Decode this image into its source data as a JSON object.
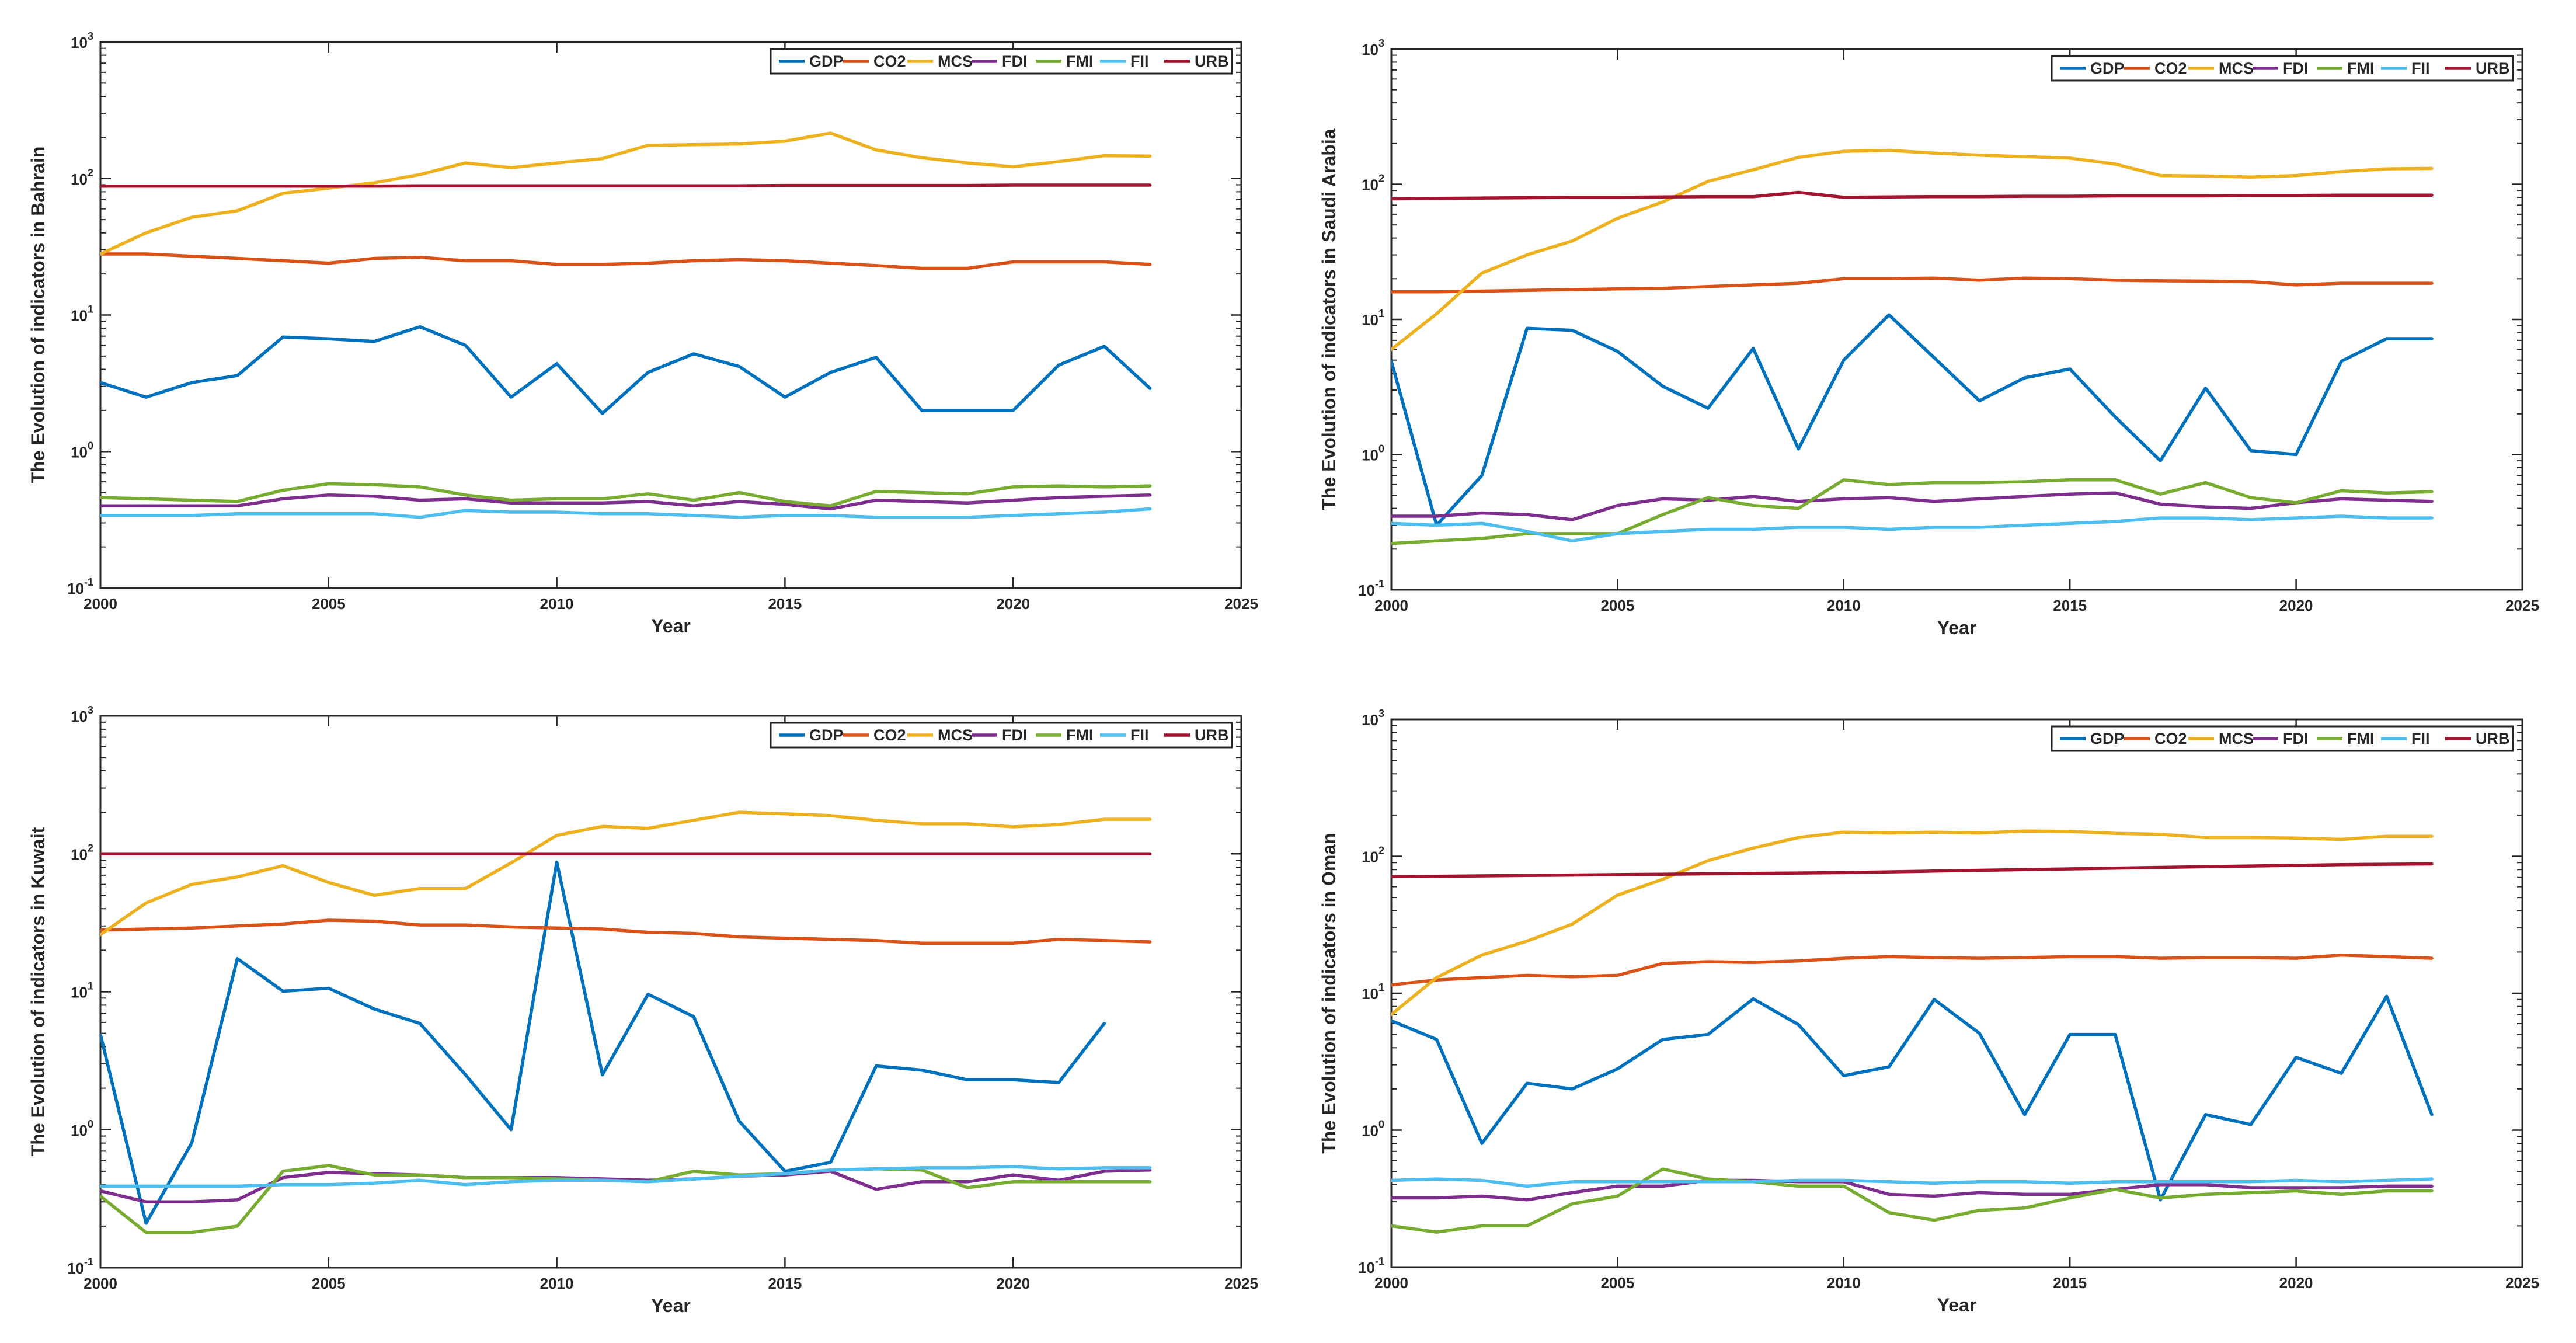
{
  "figure": {
    "series_colors": {
      "GDP": "#0072BD",
      "CO2": "#D95319",
      "MCS": "#EDB120",
      "FDI": "#7E2F8E",
      "FMI": "#77AC30",
      "FII": "#4DBEEE",
      "URB": "#A2142F"
    }
  },
  "chart_data": [
    {
      "type": "line",
      "panel": "Bahrain",
      "xlabel": "Year",
      "ylabel": "The Evolution of indicators in Bahrain",
      "xlim": [
        2000,
        2025
      ],
      "ylim": [
        0.1,
        1000
      ],
      "yscale": "log",
      "xticks": [
        2000,
        2005,
        2010,
        2015,
        2020,
        2025
      ],
      "yticks": [
        {
          "base": "10",
          "exp": "-1"
        },
        {
          "base": "10",
          "exp": "0"
        },
        {
          "base": "10",
          "exp": "1"
        },
        {
          "base": "10",
          "exp": "2"
        },
        {
          "base": "10",
          "exp": "3"
        }
      ],
      "legend": [
        "GDP",
        "CO2",
        "MCS",
        "FDI",
        "FMI",
        "FII",
        "URB"
      ],
      "legend_location": "top-right",
      "grid": false,
      "x": [
        2000,
        2001,
        2002,
        2003,
        2004,
        2005,
        2006,
        2007,
        2008,
        2009,
        2010,
        2011,
        2012,
        2013,
        2014,
        2015,
        2016,
        2017,
        2018,
        2019,
        2020,
        2021,
        2022,
        2023
      ],
      "series": [
        {
          "name": "GDP",
          "values": [
            3.2,
            2.5,
            3.2,
            3.6,
            6.9,
            6.7,
            6.4,
            8.2,
            6.0,
            2.5,
            4.4,
            1.9,
            3.8,
            5.2,
            4.2,
            2.5,
            3.8,
            4.9,
            2.0,
            2.0,
            2.0,
            4.3,
            5.9,
            2.9
          ]
        },
        {
          "name": "CO2",
          "values": [
            28,
            28,
            27,
            26,
            25,
            24,
            26,
            26.5,
            25,
            25,
            23.5,
            23.5,
            24,
            25,
            25.5,
            25,
            24,
            23,
            22,
            22,
            24.5,
            24.5,
            24.5,
            23.5
          ]
        },
        {
          "name": "MCS",
          "values": [
            28,
            40,
            52,
            58,
            78,
            85,
            93,
            107,
            130,
            120,
            130,
            140,
            175,
            177,
            179,
            188,
            215,
            162,
            142,
            130,
            122,
            133,
            147,
            146
          ]
        },
        {
          "name": "FDI",
          "values": [
            0.4,
            0.4,
            0.4,
            0.4,
            0.45,
            0.48,
            0.47,
            0.44,
            0.45,
            0.42,
            0.42,
            0.42,
            0.43,
            0.4,
            0.43,
            0.41,
            0.38,
            0.44,
            0.43,
            0.42,
            0.44,
            0.46,
            0.47,
            0.48
          ]
        },
        {
          "name": "FMI",
          "values": [
            0.46,
            0.45,
            0.44,
            0.43,
            0.52,
            0.58,
            0.57,
            0.55,
            0.48,
            0.44,
            0.45,
            0.45,
            0.49,
            0.44,
            0.5,
            0.43,
            0.4,
            0.51,
            0.5,
            0.49,
            0.55,
            0.56,
            0.55,
            0.56
          ]
        },
        {
          "name": "FII",
          "values": [
            0.34,
            0.34,
            0.34,
            0.35,
            0.35,
            0.35,
            0.35,
            0.33,
            0.37,
            0.36,
            0.36,
            0.35,
            0.35,
            0.34,
            0.33,
            0.34,
            0.34,
            0.33,
            0.33,
            0.33,
            0.34,
            0.35,
            0.36,
            0.38
          ]
        },
        {
          "name": "URB",
          "values": [
            88,
            88,
            88,
            88,
            88,
            88,
            88,
            88.5,
            88.5,
            88.5,
            88.5,
            88.5,
            88.5,
            88.5,
            88.5,
            89,
            89,
            89,
            89,
            89,
            89.5,
            89.5,
            89.5,
            89.5
          ]
        }
      ]
    },
    {
      "type": "line",
      "panel": "Saudi Arabia",
      "xlabel": "Year",
      "ylabel": "The Evolution of indicators in Saudi Arabia",
      "xlim": [
        2000,
        2025
      ],
      "ylim": [
        0.1,
        1000
      ],
      "yscale": "log",
      "xticks": [
        2000,
        2005,
        2010,
        2015,
        2020,
        2025
      ],
      "yticks": [
        {
          "base": "10",
          "exp": "-1"
        },
        {
          "base": "10",
          "exp": "0"
        },
        {
          "base": "10",
          "exp": "1"
        },
        {
          "base": "10",
          "exp": "2"
        },
        {
          "base": "10",
          "exp": "3"
        }
      ],
      "legend": [
        "GDP",
        "CO2",
        "MCS",
        "FDI",
        "FMI",
        "FII",
        "URB"
      ],
      "legend_location": "top-right",
      "grid": false,
      "x": [
        2000,
        2001,
        2002,
        2003,
        2004,
        2005,
        2006,
        2007,
        2008,
        2009,
        2010,
        2011,
        2012,
        2013,
        2014,
        2015,
        2016,
        2017,
        2018,
        2019,
        2020,
        2021,
        2022,
        2023
      ],
      "series": [
        {
          "name": "GDP",
          "values": [
            4.9,
            0.3,
            0.7,
            8.6,
            8.3,
            5.8,
            3.2,
            2.2,
            6.1,
            1.1,
            5.0,
            10.8,
            5.2,
            2.5,
            3.7,
            4.3,
            1.9,
            0.9,
            3.1,
            1.07,
            1.0,
            4.9,
            7.2,
            7.2
          ]
        },
        {
          "name": "CO2",
          "values": [
            16,
            16,
            16.2,
            16.4,
            16.6,
            16.8,
            17,
            17.5,
            18,
            18.5,
            20,
            20,
            20.2,
            19.5,
            20.2,
            20,
            19.5,
            19.3,
            19.2,
            19,
            18,
            18.5,
            18.5,
            18.5
          ]
        },
        {
          "name": "MCS",
          "values": [
            6,
            11,
            22,
            30,
            38,
            56,
            74,
            105,
            128,
            158,
            175,
            178,
            170,
            164,
            160,
            156,
            141,
            116,
            115,
            113,
            116,
            124,
            130,
            131
          ]
        },
        {
          "name": "FDI",
          "values": [
            0.35,
            0.35,
            0.37,
            0.36,
            0.33,
            0.42,
            0.47,
            0.46,
            0.49,
            0.45,
            0.47,
            0.48,
            0.45,
            0.47,
            0.49,
            0.51,
            0.52,
            0.43,
            0.41,
            0.4,
            0.44,
            0.47,
            0.46,
            0.45
          ]
        },
        {
          "name": "FMI",
          "values": [
            0.22,
            0.23,
            0.24,
            0.26,
            0.26,
            0.26,
            0.36,
            0.48,
            0.42,
            0.4,
            0.65,
            0.6,
            0.62,
            0.62,
            0.63,
            0.65,
            0.65,
            0.51,
            0.62,
            0.48,
            0.44,
            0.54,
            0.52,
            0.53
          ]
        },
        {
          "name": "FII",
          "values": [
            0.31,
            0.3,
            0.31,
            0.27,
            0.23,
            0.26,
            0.27,
            0.28,
            0.28,
            0.29,
            0.29,
            0.28,
            0.29,
            0.29,
            0.3,
            0.31,
            0.32,
            0.34,
            0.34,
            0.33,
            0.34,
            0.35,
            0.34,
            0.34
          ]
        },
        {
          "name": "URB",
          "values": [
            78,
            78.5,
            79,
            79.5,
            80,
            80,
            80.5,
            81,
            81,
            87,
            80,
            80.5,
            81,
            81,
            81.5,
            81.5,
            82,
            82,
            82,
            82.5,
            82.5,
            83,
            83,
            83
          ]
        }
      ]
    },
    {
      "type": "line",
      "panel": "Kuwait",
      "xlabel": "Year",
      "ylabel": "The Evolution of indicators in Kuwait",
      "xlim": [
        2000,
        2025
      ],
      "ylim": [
        0.1,
        1000
      ],
      "yscale": "log",
      "xticks": [
        2000,
        2005,
        2010,
        2015,
        2020,
        2025
      ],
      "yticks": [
        {
          "base": "10",
          "exp": "-1"
        },
        {
          "base": "10",
          "exp": "0"
        },
        {
          "base": "10",
          "exp": "1"
        },
        {
          "base": "10",
          "exp": "2"
        },
        {
          "base": "10",
          "exp": "3"
        }
      ],
      "legend": [
        "GDP",
        "CO2",
        "MCS",
        "FDI",
        "FMI",
        "FII",
        "URB"
      ],
      "legend_location": "top-right",
      "grid": false,
      "x": [
        2000,
        2001,
        2002,
        2003,
        2004,
        2005,
        2006,
        2007,
        2008,
        2009,
        2010,
        2011,
        2012,
        2013,
        2014,
        2015,
        2016,
        2017,
        2018,
        2019,
        2020,
        2021,
        2022,
        2023
      ],
      "series": [
        {
          "name": "GDP",
          "values": [
            4.9,
            0.21,
            0.8,
            17.4,
            10.1,
            10.6,
            7.5,
            5.9,
            2.5,
            1.0,
            87,
            2.5,
            9.6,
            6.6,
            1.15,
            0.5,
            0.58,
            2.9,
            2.7,
            2.3,
            2.3,
            2.2,
            5.9,
            null
          ]
        },
        {
          "name": "CO2",
          "values": [
            28,
            28.5,
            29,
            30,
            31,
            33,
            32.5,
            30.5,
            30.5,
            29.5,
            29,
            28.5,
            27,
            26.5,
            25,
            24.5,
            24,
            23.5,
            22.5,
            22.5,
            22.5,
            24,
            23.5,
            23
          ]
        },
        {
          "name": "MCS",
          "values": [
            26,
            44,
            60,
            68,
            82,
            62,
            50,
            56,
            56,
            86,
            136,
            158,
            153,
            175,
            200,
            195,
            189,
            175,
            165,
            165,
            157,
            163,
            178,
            178
          ]
        },
        {
          "name": "FDI",
          "values": [
            0.36,
            0.3,
            0.3,
            0.31,
            0.45,
            0.49,
            0.48,
            0.47,
            0.45,
            0.45,
            0.45,
            0.44,
            0.43,
            0.44,
            0.46,
            0.47,
            0.5,
            0.37,
            0.42,
            0.42,
            0.47,
            0.43,
            0.5,
            0.51
          ]
        },
        {
          "name": "FMI",
          "values": [
            0.33,
            0.18,
            0.18,
            0.2,
            0.5,
            0.55,
            0.47,
            0.47,
            0.45,
            0.45,
            0.44,
            0.43,
            0.42,
            0.5,
            0.47,
            0.48,
            0.51,
            0.52,
            0.51,
            0.38,
            0.42,
            0.42,
            0.42,
            0.42
          ]
        },
        {
          "name": "FII",
          "values": [
            0.39,
            0.39,
            0.39,
            0.39,
            0.4,
            0.4,
            0.41,
            0.43,
            0.4,
            0.42,
            0.43,
            0.43,
            0.42,
            0.44,
            0.46,
            0.48,
            0.51,
            0.52,
            0.53,
            0.53,
            0.54,
            0.52,
            0.53,
            0.53
          ]
        },
        {
          "name": "URB",
          "values": [
            100,
            100,
            100,
            100,
            100,
            100,
            100,
            100,
            100,
            100,
            100,
            100,
            100,
            100,
            100,
            100,
            100,
            100,
            100,
            100,
            100,
            100,
            100,
            100
          ]
        }
      ]
    },
    {
      "type": "line",
      "panel": "Oman",
      "xlabel": "Year",
      "ylabel": "The Evolution of indicators in Oman",
      "xlim": [
        2000,
        2025
      ],
      "ylim": [
        0.1,
        1000
      ],
      "yscale": "log",
      "xticks": [
        2000,
        2005,
        2010,
        2015,
        2020,
        2025
      ],
      "yticks": [
        {
          "base": "10",
          "exp": "-1"
        },
        {
          "base": "10",
          "exp": "0"
        },
        {
          "base": "10",
          "exp": "1"
        },
        {
          "base": "10",
          "exp": "2"
        },
        {
          "base": "10",
          "exp": "3"
        }
      ],
      "legend": [
        "GDP",
        "CO2",
        "MCS",
        "FDI",
        "FMI",
        "FII",
        "URB"
      ],
      "legend_location": "top-right",
      "grid": false,
      "x": [
        2000,
        2001,
        2002,
        2003,
        2004,
        2005,
        2006,
        2007,
        2008,
        2009,
        2010,
        2011,
        2012,
        2013,
        2014,
        2015,
        2016,
        2017,
        2018,
        2019,
        2020,
        2021,
        2022,
        2023
      ],
      "series": [
        {
          "name": "GDP",
          "values": [
            6.3,
            4.6,
            0.8,
            2.2,
            2.0,
            2.8,
            4.6,
            5.0,
            9.1,
            5.9,
            2.5,
            2.9,
            9.0,
            5.1,
            1.3,
            5.0,
            5.0,
            0.31,
            1.3,
            1.1,
            3.4,
            2.6,
            9.5,
            1.3
          ]
        },
        {
          "name": "CO2",
          "values": [
            11.5,
            12.5,
            13,
            13.5,
            13.2,
            13.5,
            16.5,
            17,
            16.8,
            17.2,
            18,
            18.5,
            18.2,
            18,
            18.2,
            18.5,
            18.5,
            18,
            18.2,
            18.2,
            18,
            19,
            18.5,
            18
          ]
        },
        {
          "name": "MCS",
          "values": [
            7,
            13,
            19,
            24,
            32,
            52,
            68,
            93,
            115,
            137,
            150,
            148,
            150,
            148,
            153,
            152,
            147,
            145,
            137,
            137,
            136,
            133,
            140,
            140
          ]
        },
        {
          "name": "FDI",
          "values": [
            0.32,
            0.32,
            0.33,
            0.31,
            0.35,
            0.39,
            0.39,
            0.43,
            0.43,
            0.42,
            0.42,
            0.34,
            0.33,
            0.35,
            0.34,
            0.34,
            0.37,
            0.4,
            0.4,
            0.38,
            0.38,
            0.38,
            0.39,
            0.39
          ]
        },
        {
          "name": "FMI",
          "values": [
            0.2,
            0.18,
            0.2,
            0.2,
            0.29,
            0.33,
            0.52,
            0.44,
            0.42,
            0.39,
            0.39,
            0.25,
            0.22,
            0.26,
            0.27,
            0.32,
            0.37,
            0.32,
            0.34,
            0.35,
            0.36,
            0.34,
            0.36,
            0.36
          ]
        },
        {
          "name": "FII",
          "values": [
            0.43,
            0.44,
            0.43,
            0.39,
            0.42,
            0.42,
            0.42,
            0.42,
            0.42,
            0.43,
            0.43,
            0.42,
            0.41,
            0.42,
            0.42,
            0.41,
            0.42,
            0.42,
            0.42,
            0.42,
            0.43,
            0.42,
            0.43,
            0.44
          ]
        },
        {
          "name": "URB",
          "values": [
            71,
            71.5,
            72,
            72.5,
            73,
            73.5,
            74,
            74.5,
            75,
            75.5,
            76,
            77,
            78,
            79,
            80,
            81,
            82,
            83,
            84,
            85,
            86,
            87,
            87.5,
            88
          ]
        }
      ]
    }
  ]
}
